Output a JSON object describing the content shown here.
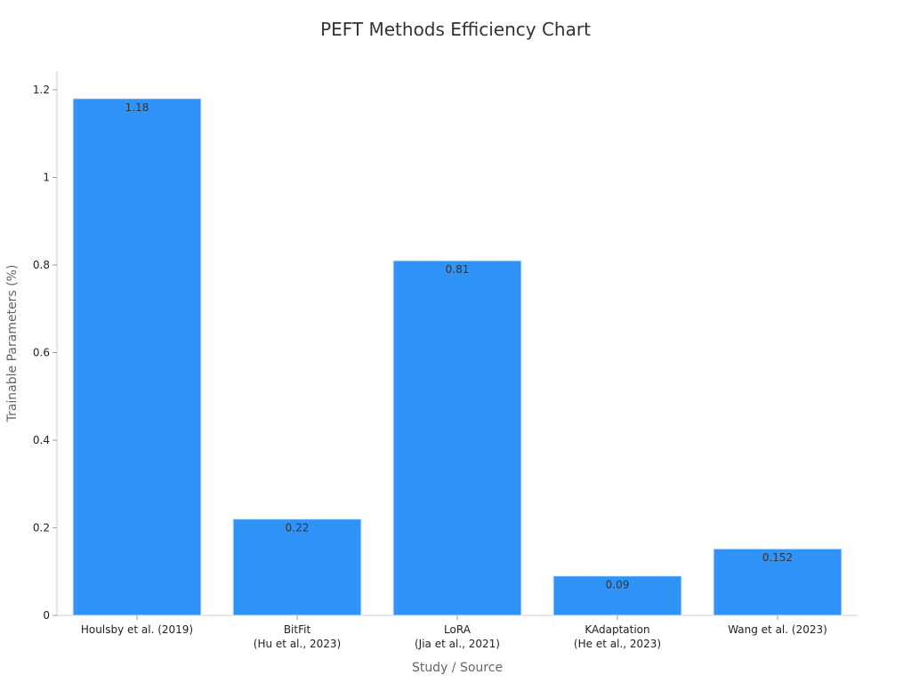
{
  "chart_data": {
    "type": "bar",
    "title": "PEFT Methods Efficiency Chart",
    "xlabel": "Study / Source",
    "ylabel": "Trainable Parameters (%)",
    "categories": [
      [
        "Houlsby et al. (2019)"
      ],
      [
        "BitFit",
        "(Hu et al., 2023)"
      ],
      [
        "LoRA",
        "(Jia et al., 2021)"
      ],
      [
        "KAdaptation",
        "(He et al., 2023)"
      ],
      [
        "Wang et al. (2023)"
      ]
    ],
    "values": [
      1.18,
      0.22,
      0.81,
      0.09,
      0.152
    ],
    "value_labels": [
      "1.18",
      "0.22",
      "0.81",
      "0.09",
      "0.152"
    ],
    "ylim": [
      0,
      1.2
    ],
    "yticks": [
      0,
      0.2,
      0.4,
      0.6,
      0.8,
      1,
      1.2
    ],
    "ytick_labels": [
      "0",
      "0.2",
      "0.4",
      "0.6",
      "0.8",
      "1",
      "1.2"
    ],
    "bar_color": "#2f93f7",
    "grid": false,
    "legend": "none"
  }
}
